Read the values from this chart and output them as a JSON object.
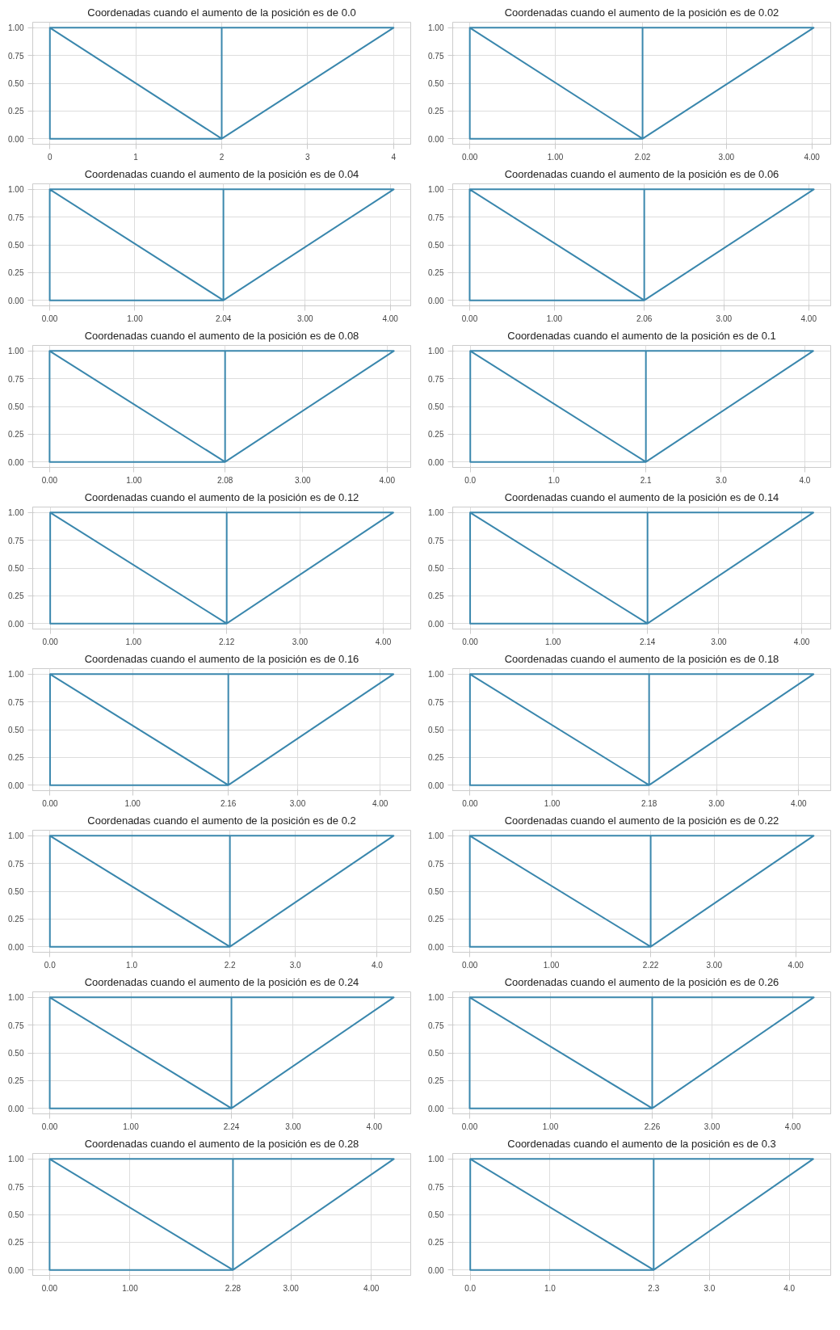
{
  "chart_data": [
    {
      "type": "line",
      "title": "Coordenadas cuando el aumento de la posición es de 0.0",
      "series": [
        {
          "color": "#3a87ad",
          "x": [
            0,
            0,
            2,
            0,
            2,
            2,
            4,
            2
          ],
          "values": [
            1,
            0,
            0,
            1,
            1,
            0,
            1,
            1
          ]
        }
      ],
      "xlim": [
        -0.2,
        4.2
      ],
      "ylim": [
        -0.05,
        1.05
      ],
      "xticks": [
        0,
        1,
        2,
        3,
        4
      ],
      "yticks": [
        {
          "value": 0,
          "label": "0.00"
        },
        {
          "value": 0.25,
          "label": "0.25"
        },
        {
          "value": 0.5,
          "label": "0.50"
        },
        {
          "value": 0.75,
          "label": "0.75"
        },
        {
          "value": 1,
          "label": "1.00"
        }
      ],
      "grid": true
    },
    {
      "type": "line",
      "title": "Coordenadas cuando el aumento de la posición es de 0.02",
      "series": [
        {
          "color": "#3a87ad",
          "x": [
            0,
            0,
            2.02,
            0,
            2.02,
            2.02,
            4.02,
            2.02
          ],
          "values": [
            1,
            0,
            0,
            1,
            1,
            0,
            1,
            1
          ]
        }
      ],
      "xlim": [
        -0.2,
        4.22
      ],
      "ylim": [
        -0.05,
        1.05
      ],
      "xticks": [
        {
          "value": 0,
          "label": "0.00"
        },
        {
          "value": 1,
          "label": "1.00"
        },
        2.02,
        {
          "value": 3,
          "label": "3.00"
        },
        {
          "value": 4,
          "label": "4.00"
        }
      ],
      "yticks": [
        {
          "value": 0,
          "label": "0.00"
        },
        {
          "value": 0.25,
          "label": "0.25"
        },
        {
          "value": 0.5,
          "label": "0.50"
        },
        {
          "value": 0.75,
          "label": "0.75"
        },
        {
          "value": 1,
          "label": "1.00"
        }
      ],
      "grid": true
    },
    {
      "type": "line",
      "title": "Coordenadas cuando el aumento de la posición es de 0.04",
      "series": [
        {
          "color": "#3a87ad",
          "x": [
            0,
            0,
            2.04,
            0,
            2.04,
            2.04,
            4.04,
            2.04
          ],
          "values": [
            1,
            0,
            0,
            1,
            1,
            0,
            1,
            1
          ]
        }
      ],
      "xlim": [
        -0.2,
        4.24
      ],
      "ylim": [
        -0.05,
        1.05
      ],
      "xticks": [
        {
          "value": 0,
          "label": "0.00"
        },
        {
          "value": 1,
          "label": "1.00"
        },
        2.04,
        {
          "value": 3,
          "label": "3.00"
        },
        {
          "value": 4,
          "label": "4.00"
        }
      ],
      "yticks": [
        {
          "value": 0,
          "label": "0.00"
        },
        {
          "value": 0.25,
          "label": "0.25"
        },
        {
          "value": 0.5,
          "label": "0.50"
        },
        {
          "value": 0.75,
          "label": "0.75"
        },
        {
          "value": 1,
          "label": "1.00"
        }
      ],
      "grid": true
    },
    {
      "type": "line",
      "title": "Coordenadas cuando el aumento de la posición es de 0.06",
      "series": [
        {
          "color": "#3a87ad",
          "x": [
            0,
            0,
            2.06,
            0,
            2.06,
            2.06,
            4.06,
            2.06
          ],
          "values": [
            1,
            0,
            0,
            1,
            1,
            0,
            1,
            1
          ]
        }
      ],
      "xlim": [
        -0.2,
        4.26
      ],
      "ylim": [
        -0.05,
        1.05
      ],
      "xticks": [
        {
          "value": 0,
          "label": "0.00"
        },
        {
          "value": 1,
          "label": "1.00"
        },
        2.06,
        {
          "value": 3,
          "label": "3.00"
        },
        {
          "value": 4,
          "label": "4.00"
        }
      ],
      "yticks": [
        {
          "value": 0,
          "label": "0.00"
        },
        {
          "value": 0.25,
          "label": "0.25"
        },
        {
          "value": 0.5,
          "label": "0.50"
        },
        {
          "value": 0.75,
          "label": "0.75"
        },
        {
          "value": 1,
          "label": "1.00"
        }
      ],
      "grid": true
    },
    {
      "type": "line",
      "title": "Coordenadas cuando el aumento de la posición es de 0.08",
      "series": [
        {
          "color": "#3a87ad",
          "x": [
            0,
            0,
            2.08,
            0,
            2.08,
            2.08,
            4.08,
            2.08
          ],
          "values": [
            1,
            0,
            0,
            1,
            1,
            0,
            1,
            1
          ]
        }
      ],
      "xlim": [
        -0.2,
        4.28
      ],
      "ylim": [
        -0.05,
        1.05
      ],
      "xticks": [
        {
          "value": 0,
          "label": "0.00"
        },
        {
          "value": 1,
          "label": "1.00"
        },
        2.08,
        {
          "value": 3,
          "label": "3.00"
        },
        {
          "value": 4,
          "label": "4.00"
        }
      ],
      "yticks": [
        {
          "value": 0,
          "label": "0.00"
        },
        {
          "value": 0.25,
          "label": "0.25"
        },
        {
          "value": 0.5,
          "label": "0.50"
        },
        {
          "value": 0.75,
          "label": "0.75"
        },
        {
          "value": 1,
          "label": "1.00"
        }
      ],
      "grid": true
    },
    {
      "type": "line",
      "title": "Coordenadas cuando el aumento de la posición es de 0.1",
      "series": [
        {
          "color": "#3a87ad",
          "x": [
            0,
            0,
            2.1,
            0,
            2.1,
            2.1,
            4.1,
            2.1
          ],
          "values": [
            1,
            0,
            0,
            1,
            1,
            0,
            1,
            1
          ]
        }
      ],
      "xlim": [
        -0.21,
        4.31
      ],
      "ylim": [
        -0.05,
        1.05
      ],
      "xticks": [
        {
          "value": 0,
          "label": "0.0"
        },
        {
          "value": 1,
          "label": "1.0"
        },
        2.1,
        {
          "value": 3,
          "label": "3.0"
        },
        {
          "value": 4,
          "label": "4.0"
        }
      ],
      "yticks": [
        {
          "value": 0,
          "label": "0.00"
        },
        {
          "value": 0.25,
          "label": "0.25"
        },
        {
          "value": 0.5,
          "label": "0.50"
        },
        {
          "value": 0.75,
          "label": "0.75"
        },
        {
          "value": 1,
          "label": "1.00"
        }
      ],
      "grid": true
    },
    {
      "type": "line",
      "title": "Coordenadas cuando el aumento de la posición es de 0.12",
      "series": [
        {
          "color": "#3a87ad",
          "x": [
            0,
            0,
            2.12,
            0,
            2.12,
            2.12,
            4.12,
            2.12
          ],
          "values": [
            1,
            0,
            0,
            1,
            1,
            0,
            1,
            1
          ]
        }
      ],
      "xlim": [
        -0.21,
        4.33
      ],
      "ylim": [
        -0.05,
        1.05
      ],
      "xticks": [
        {
          "value": 0,
          "label": "0.00"
        },
        {
          "value": 1,
          "label": "1.00"
        },
        2.12,
        {
          "value": 3,
          "label": "3.00"
        },
        {
          "value": 4,
          "label": "4.00"
        }
      ],
      "yticks": [
        {
          "value": 0,
          "label": "0.00"
        },
        {
          "value": 0.25,
          "label": "0.25"
        },
        {
          "value": 0.5,
          "label": "0.50"
        },
        {
          "value": 0.75,
          "label": "0.75"
        },
        {
          "value": 1,
          "label": "1.00"
        }
      ],
      "grid": true
    },
    {
      "type": "line",
      "title": "Coordenadas cuando el aumento de la posición es de 0.14",
      "series": [
        {
          "color": "#3a87ad",
          "x": [
            0,
            0,
            2.14,
            0,
            2.14,
            2.14,
            4.14,
            2.14
          ],
          "values": [
            1,
            0,
            0,
            1,
            1,
            0,
            1,
            1
          ]
        }
      ],
      "xlim": [
        -0.21,
        4.35
      ],
      "ylim": [
        -0.05,
        1.05
      ],
      "xticks": [
        {
          "value": 0,
          "label": "0.00"
        },
        {
          "value": 1,
          "label": "1.00"
        },
        2.14,
        {
          "value": 3,
          "label": "3.00"
        },
        {
          "value": 4,
          "label": "4.00"
        }
      ],
      "yticks": [
        {
          "value": 0,
          "label": "0.00"
        },
        {
          "value": 0.25,
          "label": "0.25"
        },
        {
          "value": 0.5,
          "label": "0.50"
        },
        {
          "value": 0.75,
          "label": "0.75"
        },
        {
          "value": 1,
          "label": "1.00"
        }
      ],
      "grid": true
    },
    {
      "type": "line",
      "title": "Coordenadas cuando el aumento de la posición es de 0.16",
      "series": [
        {
          "color": "#3a87ad",
          "x": [
            0,
            0,
            2.16,
            0,
            2.16,
            2.16,
            4.16,
            2.16
          ],
          "values": [
            1,
            0,
            0,
            1,
            1,
            0,
            1,
            1
          ]
        }
      ],
      "xlim": [
        -0.21,
        4.37
      ],
      "ylim": [
        -0.05,
        1.05
      ],
      "xticks": [
        {
          "value": 0,
          "label": "0.00"
        },
        {
          "value": 1,
          "label": "1.00"
        },
        2.16,
        {
          "value": 3,
          "label": "3.00"
        },
        {
          "value": 4,
          "label": "4.00"
        }
      ],
      "yticks": [
        {
          "value": 0,
          "label": "0.00"
        },
        {
          "value": 0.25,
          "label": "0.25"
        },
        {
          "value": 0.5,
          "label": "0.50"
        },
        {
          "value": 0.75,
          "label": "0.75"
        },
        {
          "value": 1,
          "label": "1.00"
        }
      ],
      "grid": true
    },
    {
      "type": "line",
      "title": "Coordenadas cuando el aumento de la posición es de 0.18",
      "series": [
        {
          "color": "#3a87ad",
          "x": [
            0,
            0,
            2.18,
            0,
            2.18,
            2.18,
            4.18,
            2.18
          ],
          "values": [
            1,
            0,
            0,
            1,
            1,
            0,
            1,
            1
          ]
        }
      ],
      "xlim": [
        -0.21,
        4.39
      ],
      "ylim": [
        -0.05,
        1.05
      ],
      "xticks": [
        {
          "value": 0,
          "label": "0.00"
        },
        {
          "value": 1,
          "label": "1.00"
        },
        2.18,
        {
          "value": 3,
          "label": "3.00"
        },
        {
          "value": 4,
          "label": "4.00"
        }
      ],
      "yticks": [
        {
          "value": 0,
          "label": "0.00"
        },
        {
          "value": 0.25,
          "label": "0.25"
        },
        {
          "value": 0.5,
          "label": "0.50"
        },
        {
          "value": 0.75,
          "label": "0.75"
        },
        {
          "value": 1,
          "label": "1.00"
        }
      ],
      "grid": true
    },
    {
      "type": "line",
      "title": "Coordenadas cuando el aumento de la posición es de 0.2",
      "series": [
        {
          "color": "#3a87ad",
          "x": [
            0,
            0,
            2.2,
            0,
            2.2,
            2.2,
            4.2,
            2.2
          ],
          "values": [
            1,
            0,
            0,
            1,
            1,
            0,
            1,
            1
          ]
        }
      ],
      "xlim": [
        -0.21,
        4.41
      ],
      "ylim": [
        -0.05,
        1.05
      ],
      "xticks": [
        {
          "value": 0,
          "label": "0.0"
        },
        {
          "value": 1,
          "label": "1.0"
        },
        2.2,
        {
          "value": 3,
          "label": "3.0"
        },
        {
          "value": 4,
          "label": "4.0"
        }
      ],
      "yticks": [
        {
          "value": 0,
          "label": "0.00"
        },
        {
          "value": 0.25,
          "label": "0.25"
        },
        {
          "value": 0.5,
          "label": "0.50"
        },
        {
          "value": 0.75,
          "label": "0.75"
        },
        {
          "value": 1,
          "label": "1.00"
        }
      ],
      "grid": true
    },
    {
      "type": "line",
      "title": "Coordenadas cuando el aumento de la posición es de 0.22",
      "series": [
        {
          "color": "#3a87ad",
          "x": [
            0,
            0,
            2.22,
            0,
            2.22,
            2.22,
            4.22,
            2.22
          ],
          "values": [
            1,
            0,
            0,
            1,
            1,
            0,
            1,
            1
          ]
        }
      ],
      "xlim": [
        -0.21,
        4.43
      ],
      "ylim": [
        -0.05,
        1.05
      ],
      "xticks": [
        {
          "value": 0,
          "label": "0.00"
        },
        {
          "value": 1,
          "label": "1.00"
        },
        2.22,
        {
          "value": 3,
          "label": "3.00"
        },
        {
          "value": 4,
          "label": "4.00"
        }
      ],
      "yticks": [
        {
          "value": 0,
          "label": "0.00"
        },
        {
          "value": 0.25,
          "label": "0.25"
        },
        {
          "value": 0.5,
          "label": "0.50"
        },
        {
          "value": 0.75,
          "label": "0.75"
        },
        {
          "value": 1,
          "label": "1.00"
        }
      ],
      "grid": true
    },
    {
      "type": "line",
      "title": "Coordenadas cuando el aumento de la posición es de 0.24",
      "series": [
        {
          "color": "#3a87ad",
          "x": [
            0,
            0,
            2.24,
            0,
            2.24,
            2.24,
            4.24,
            2.24
          ],
          "values": [
            1,
            0,
            0,
            1,
            1,
            0,
            1,
            1
          ]
        }
      ],
      "xlim": [
        -0.21,
        4.45
      ],
      "ylim": [
        -0.05,
        1.05
      ],
      "xticks": [
        {
          "value": 0,
          "label": "0.00"
        },
        {
          "value": 1,
          "label": "1.00"
        },
        2.24,
        {
          "value": 3,
          "label": "3.00"
        },
        {
          "value": 4,
          "label": "4.00"
        }
      ],
      "yticks": [
        {
          "value": 0,
          "label": "0.00"
        },
        {
          "value": 0.25,
          "label": "0.25"
        },
        {
          "value": 0.5,
          "label": "0.50"
        },
        {
          "value": 0.75,
          "label": "0.75"
        },
        {
          "value": 1,
          "label": "1.00"
        }
      ],
      "grid": true
    },
    {
      "type": "line",
      "title": "Coordenadas cuando el aumento de la posición es de 0.26",
      "series": [
        {
          "color": "#3a87ad",
          "x": [
            0,
            0,
            2.26,
            0,
            2.26,
            2.26,
            4.26,
            2.26
          ],
          "values": [
            1,
            0,
            0,
            1,
            1,
            0,
            1,
            1
          ]
        }
      ],
      "xlim": [
        -0.21,
        4.47
      ],
      "ylim": [
        -0.05,
        1.05
      ],
      "xticks": [
        {
          "value": 0,
          "label": "0.00"
        },
        {
          "value": 1,
          "label": "1.00"
        },
        2.26,
        {
          "value": 3,
          "label": "3.00"
        },
        {
          "value": 4,
          "label": "4.00"
        }
      ],
      "yticks": [
        {
          "value": 0,
          "label": "0.00"
        },
        {
          "value": 0.25,
          "label": "0.25"
        },
        {
          "value": 0.5,
          "label": "0.50"
        },
        {
          "value": 0.75,
          "label": "0.75"
        },
        {
          "value": 1,
          "label": "1.00"
        }
      ],
      "grid": true
    },
    {
      "type": "line",
      "title": "Coordenadas cuando el aumento de la posición es de 0.28",
      "series": [
        {
          "color": "#3a87ad",
          "x": [
            0,
            0,
            2.28,
            0,
            2.28,
            2.28,
            4.28,
            2.28
          ],
          "values": [
            1,
            0,
            0,
            1,
            1,
            0,
            1,
            1
          ]
        }
      ],
      "xlim": [
        -0.21,
        4.49
      ],
      "ylim": [
        -0.05,
        1.05
      ],
      "xticks": [
        {
          "value": 0,
          "label": "0.00"
        },
        {
          "value": 1,
          "label": "1.00"
        },
        2.28,
        {
          "value": 3,
          "label": "3.00"
        },
        {
          "value": 4,
          "label": "4.00"
        }
      ],
      "yticks": [
        {
          "value": 0,
          "label": "0.00"
        },
        {
          "value": 0.25,
          "label": "0.25"
        },
        {
          "value": 0.5,
          "label": "0.50"
        },
        {
          "value": 0.75,
          "label": "0.75"
        },
        {
          "value": 1,
          "label": "1.00"
        }
      ],
      "grid": true
    },
    {
      "type": "line",
      "title": "Coordenadas cuando el aumento de la posición es de 0.3",
      "series": [
        {
          "color": "#3a87ad",
          "x": [
            0,
            0,
            2.3,
            0,
            2.3,
            2.3,
            4.3,
            2.3
          ],
          "values": [
            1,
            0,
            0,
            1,
            1,
            0,
            1,
            1
          ]
        }
      ],
      "xlim": [
        -0.22,
        4.52
      ],
      "ylim": [
        -0.05,
        1.05
      ],
      "xticks": [
        {
          "value": 0,
          "label": "0.0"
        },
        {
          "value": 1,
          "label": "1.0"
        },
        2.3,
        {
          "value": 3,
          "label": "3.0"
        },
        {
          "value": 4,
          "label": "4.0"
        }
      ],
      "yticks": [
        {
          "value": 0,
          "label": "0.00"
        },
        {
          "value": 0.25,
          "label": "0.25"
        },
        {
          "value": 0.5,
          "label": "0.50"
        },
        {
          "value": 0.75,
          "label": "0.75"
        },
        {
          "value": 1,
          "label": "1.00"
        }
      ],
      "grid": true
    }
  ]
}
